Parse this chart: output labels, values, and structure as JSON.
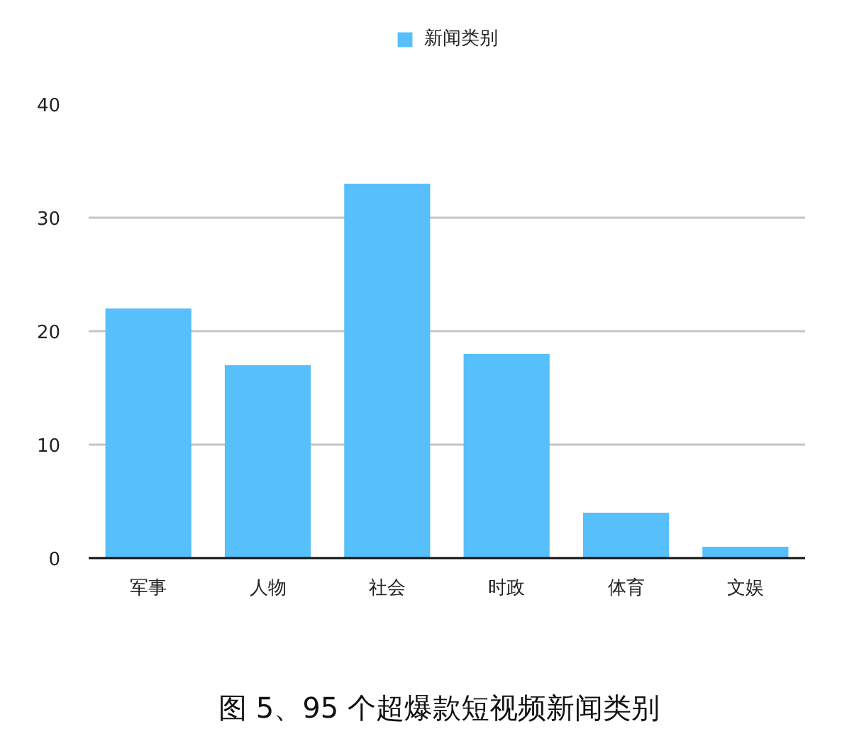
{
  "chart_data": {
    "type": "bar",
    "title": "图 5、95 个超爆款短视频新闻类别",
    "categories": [
      "军事",
      "人物",
      "社会",
      "时政",
      "体育",
      "文娱"
    ],
    "series": [
      {
        "name": "新闻类别",
        "color": "#57bffc",
        "values": [
          22,
          17,
          33,
          18,
          4,
          1
        ]
      }
    ],
    "ylim": [
      0,
      40
    ],
    "yticks": [
      0,
      10,
      20,
      30,
      40
    ],
    "grid": "y",
    "legend": "top"
  }
}
